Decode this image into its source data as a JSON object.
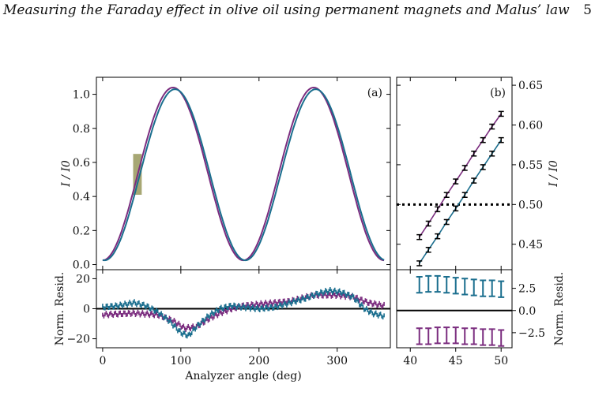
{
  "header": {
    "running_title": "Measuring the Faraday effect in olive oil using permanent magnets and Malus’ law",
    "page_number": "5"
  },
  "colors": {
    "series_1": "#7b2d7f",
    "series_2": "#1a6e8e",
    "shaded_region": "#8a8a45",
    "axis": "#000000"
  },
  "chart_data": [
    {
      "type": "line",
      "panel_label": "(a)",
      "ylabel": "I / I0",
      "xlabel": "",
      "xlim": [
        -8,
        368
      ],
      "ylim": [
        -0.03,
        1.1
      ],
      "yticks": [
        0.0,
        0.2,
        0.4,
        0.6,
        0.8,
        1.0
      ],
      "ytick_labels": [
        "0.0",
        "0.2",
        "0.4",
        "0.6",
        "0.8",
        "1.0"
      ],
      "shaded_region": {
        "x": [
          39,
          50
        ],
        "y": [
          0.41,
          0.65
        ]
      },
      "series": [
        {
          "model": "a*cos^2(x - phi) + b",
          "amplitude": 1.015,
          "offset": 0.025,
          "phase_deg": 0,
          "color": "series_1"
        },
        {
          "model": "a*cos^2(x - phi) + b",
          "amplitude": 1.005,
          "offset": 0.025,
          "phase_deg": 2.5,
          "color": "series_2"
        }
      ]
    },
    {
      "type": "scatter",
      "panel_label": "",
      "ylabel": "Norm. Resid.",
      "xlabel": "Analyzer angle (deg)",
      "xlim": [
        -8,
        368
      ],
      "ylim": [
        -26,
        26
      ],
      "xticks": [
        0,
        100,
        200,
        300
      ],
      "xtick_labels": [
        "0",
        "100",
        "200",
        "300"
      ],
      "yticks": [
        -20,
        0,
        20
      ],
      "ytick_labels": [
        "−20",
        "0",
        "20"
      ],
      "zero_line": true,
      "series": [
        {
          "color": "series_1",
          "x": [
            0,
            40,
            70,
            90,
            105,
            120,
            135,
            150,
            165,
            180,
            200,
            220,
            240,
            255,
            270,
            285,
            300,
            320,
            340,
            360
          ],
          "y": [
            -4,
            -3,
            -4,
            -8,
            -13,
            -12,
            -7,
            -3,
            0,
            2,
            3,
            4,
            5,
            7,
            9,
            9,
            9,
            8,
            4,
            2
          ]
        },
        {
          "color": "series_2",
          "x": [
            0,
            20,
            40,
            55,
            70,
            85,
            100,
            110,
            120,
            135,
            150,
            165,
            180,
            200,
            220,
            240,
            260,
            275,
            290,
            305,
            320,
            335,
            345,
            360
          ],
          "y": [
            1,
            2,
            4,
            2,
            -2,
            -8,
            -16,
            -18,
            -12,
            -5,
            0,
            2,
            1,
            0,
            1,
            4,
            7,
            10,
            12,
            11,
            8,
            0,
            -3,
            -5
          ]
        }
      ]
    },
    {
      "type": "scatter",
      "panel_label": "(b)",
      "ylabel": "I / I0",
      "xlabel": "",
      "xlim": [
        38.5,
        51.2
      ],
      "ylim": [
        0.418,
        0.66
      ],
      "yticks": [
        0.45,
        0.5,
        0.55,
        0.6,
        0.65
      ],
      "ytick_labels": [
        "0.45",
        "0.50",
        "0.55",
        "0.60",
        "0.65"
      ],
      "reference_line": {
        "y": 0.5,
        "style": "dotted"
      },
      "series": [
        {
          "color": "series_1",
          "x": [
            41,
            42,
            43,
            44,
            45,
            46,
            47,
            48,
            49,
            50
          ],
          "y": [
            0.459,
            0.476,
            0.494,
            0.512,
            0.529,
            0.546,
            0.564,
            0.581,
            0.598,
            0.614
          ],
          "error": 0.003
        },
        {
          "color": "series_2",
          "x": [
            41,
            42,
            43,
            44,
            45,
            46,
            47,
            48,
            49,
            50
          ],
          "y": [
            0.426,
            0.443,
            0.46,
            0.478,
            0.495,
            0.512,
            0.53,
            0.547,
            0.564,
            0.581
          ],
          "error": 0.003
        }
      ]
    },
    {
      "type": "scatter",
      "panel_label": "",
      "ylabel": "Norm. Resid.",
      "xlabel": "",
      "xlim": [
        38.5,
        51.2
      ],
      "ylim": [
        -4.2,
        4.6
      ],
      "xticks": [
        40,
        45,
        50
      ],
      "xtick_labels": [
        "40",
        "45",
        "50"
      ],
      "yticks": [
        -2.5,
        0.0,
        2.5
      ],
      "ytick_labels": [
        "−2.5",
        "0.0",
        "2.5"
      ],
      "zero_line": true,
      "series": [
        {
          "color": "series_1",
          "x": [
            41,
            42,
            43,
            44,
            45,
            46,
            47,
            48,
            49,
            50
          ],
          "y": [
            -2.9,
            -2.9,
            -2.8,
            -2.8,
            -2.8,
            -2.9,
            -2.9,
            -3.0,
            -3.0,
            -3.1
          ],
          "error": 0.9
        },
        {
          "color": "series_2",
          "x": [
            41,
            42,
            43,
            44,
            45,
            46,
            47,
            48,
            49,
            50
          ],
          "y": [
            2.9,
            3.0,
            3.0,
            2.9,
            2.8,
            2.7,
            2.6,
            2.5,
            2.5,
            2.4
          ],
          "error": 0.9
        }
      ]
    }
  ]
}
